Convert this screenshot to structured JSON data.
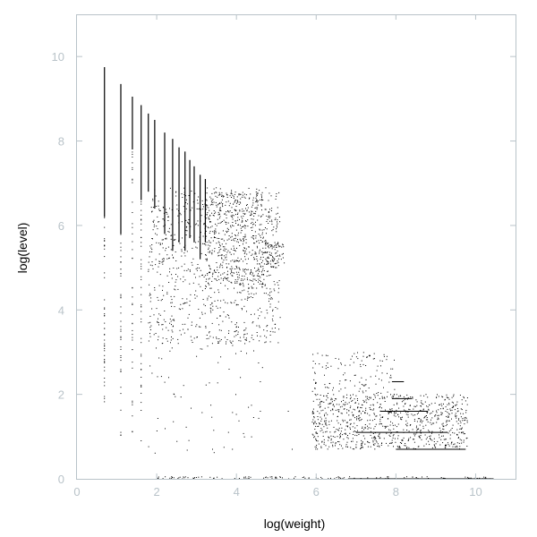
{
  "chart_data": {
    "type": "scatter",
    "title": "",
    "xlabel": "log(weight)",
    "ylabel": "log(level)",
    "xlim": [
      0,
      11
    ],
    "ylim": [
      0,
      11
    ],
    "x_ticks": [
      0,
      2,
      4,
      6,
      8,
      10
    ],
    "y_ticks": [
      0,
      2,
      4,
      6,
      8,
      10
    ],
    "grid": false,
    "colors": {
      "points": "#000000",
      "frame": "#b9c3c9",
      "tick_labels": "#b9c3c9"
    },
    "vertical_bars": [
      {
        "x": 0.69,
        "y": [
          6.2,
          9.75
        ]
      },
      {
        "x": 1.1,
        "y": [
          5.8,
          9.35
        ]
      },
      {
        "x": 1.39,
        "y": [
          7.8,
          9.05
        ]
      },
      {
        "x": 1.61,
        "y": [
          6.6,
          8.85
        ]
      },
      {
        "x": 1.79,
        "y": [
          6.8,
          8.65
        ]
      },
      {
        "x": 1.95,
        "y": [
          6.4,
          8.5
        ]
      },
      {
        "x": 2.2,
        "y": [
          5.8,
          8.2
        ]
      },
      {
        "x": 2.4,
        "y": [
          5.4,
          8.05
        ]
      },
      {
        "x": 2.56,
        "y": [
          5.6,
          7.85
        ]
      },
      {
        "x": 2.71,
        "y": [
          5.4,
          7.75
        ]
      },
      {
        "x": 2.83,
        "y": [
          5.7,
          7.55
        ]
      },
      {
        "x": 2.94,
        "y": [
          5.6,
          7.4
        ]
      },
      {
        "x": 3.09,
        "y": [
          5.2,
          7.2
        ]
      },
      {
        "x": 3.22,
        "y": [
          5.6,
          7.1
        ]
      }
    ],
    "point_clouds": [
      {
        "x": [
          0.69,
          0.69
        ],
        "y": [
          1.8,
          6.2
        ],
        "n": 40
      },
      {
        "x": [
          1.1,
          1.1
        ],
        "y": [
          1.0,
          5.8
        ],
        "n": 40
      },
      {
        "x": [
          1.39,
          1.39
        ],
        "y": [
          0.9,
          7.8
        ],
        "n": 40
      },
      {
        "x": [
          1.61,
          1.61
        ],
        "y": [
          1.6,
          6.6
        ],
        "n": 40
      },
      {
        "x": [
          1.79,
          5.1
        ],
        "y": [
          3.2,
          6.9
        ],
        "n": 900
      },
      {
        "x": [
          1.79,
          4.7
        ],
        "y": [
          0.6,
          3.2
        ],
        "n": 60
      },
      {
        "x": [
          3.2,
          4.7
        ],
        "y": [
          4.6,
          6.8
        ],
        "n": 450
      },
      {
        "x": [
          4.7,
          5.2
        ],
        "y": [
          5.0,
          5.6
        ],
        "n": 80
      },
      {
        "x": [
          5.9,
          9.8
        ],
        "y": [
          0.7,
          2.0
        ],
        "n": 900
      },
      {
        "x": [
          5.9,
          8.0
        ],
        "y": [
          2.0,
          3.0
        ],
        "n": 120
      },
      {
        "x": [
          2.0,
          10.4
        ],
        "y": [
          0.0,
          0.05
        ],
        "n": 120
      }
    ],
    "horizontal_segments": [
      {
        "y": 0.0,
        "x": [
          6.8,
          10.45
        ]
      },
      {
        "y": 0.7,
        "x": [
          8.0,
          9.75
        ]
      },
      {
        "y": 1.1,
        "x": [
          7.0,
          9.3
        ]
      },
      {
        "y": 1.6,
        "x": [
          7.6,
          8.8
        ]
      },
      {
        "y": 1.9,
        "x": [
          7.9,
          8.4
        ]
      },
      {
        "y": 2.3,
        "x": [
          7.9,
          8.2
        ]
      }
    ],
    "isolated_points": [
      {
        "x": 0.69,
        "y": 2.75
      },
      {
        "x": 0.69,
        "y": 1.95
      },
      {
        "x": 1.1,
        "y": 1.1
      },
      {
        "x": 1.61,
        "y": 0.9
      },
      {
        "x": 3.4,
        "y": 0.7
      },
      {
        "x": 3.9,
        "y": 0.7
      },
      {
        "x": 2.3,
        "y": 2.4
      },
      {
        "x": 3.0,
        "y": 2.9
      },
      {
        "x": 4.6,
        "y": 2.3
      },
      {
        "x": 4.6,
        "y": 1.6
      },
      {
        "x": 5.3,
        "y": 1.6
      },
      {
        "x": 5.4,
        "y": 0.7
      },
      {
        "x": 4.1,
        "y": 2.4
      },
      {
        "x": 3.8,
        "y": 1.1
      }
    ]
  }
}
